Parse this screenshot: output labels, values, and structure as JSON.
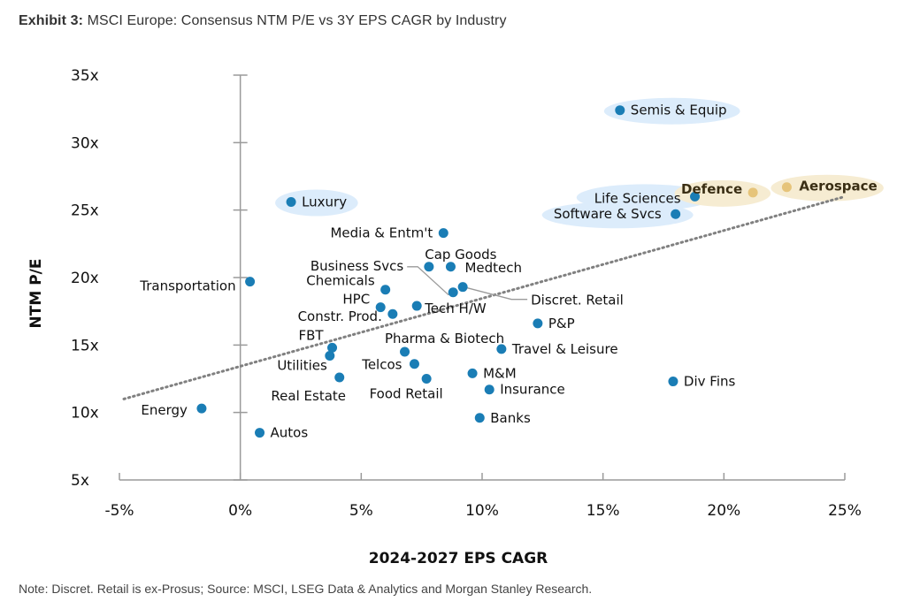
{
  "header": {
    "exhibit": "Exhibit 3:",
    "title": "MSCI Europe: Consensus NTM P/E vs 3Y EPS CAGR by Industry"
  },
  "footer": {
    "note": "Note: Discret. Retail is ex-Prosus; Source: MSCI, LSEG Data & Analytics and Morgan Stanley Research."
  },
  "colors": {
    "point": "#1a7db5",
    "highlight_point": "#e6c47a",
    "blue_halo": "#dcecfb",
    "gold_halo": "#f6ecd2",
    "axis": "#9a9a9a",
    "trendline": "#808080"
  },
  "chart_data": {
    "type": "scatter",
    "title": "MSCI Europe: Consensus NTM P/E vs 3Y EPS CAGR by Industry",
    "xlabel": "2024-2027 EPS CAGR",
    "ylabel": "NTM P/E",
    "xlim": [
      -5,
      25
    ],
    "ylim": [
      5,
      35
    ],
    "x_ticks": [
      -5,
      0,
      5,
      10,
      15,
      20,
      25
    ],
    "x_tick_labels": [
      "-5%",
      "0%",
      "5%",
      "10%",
      "15%",
      "20%",
      "25%"
    ],
    "y_ticks": [
      5,
      10,
      15,
      20,
      25,
      30,
      35
    ],
    "y_tick_labels": [
      "5x",
      "10x",
      "15x",
      "20x",
      "25x",
      "30x",
      "35x"
    ],
    "grid": false,
    "legend": "none",
    "trendline": {
      "style": "dotted",
      "x": [
        -5,
        25
      ],
      "y": [
        11.0,
        26.0
      ]
    },
    "points": [
      {
        "label": "Energy",
        "x": -1.6,
        "y": 10.3,
        "style": "normal",
        "label_pos": "left"
      },
      {
        "label": "Autos",
        "x": 0.8,
        "y": 8.5,
        "style": "normal",
        "label_pos": "right"
      },
      {
        "label": "Transportation",
        "x": 0.4,
        "y": 19.7,
        "style": "normal",
        "label_pos": "left"
      },
      {
        "label": "Luxury",
        "x": 2.1,
        "y": 25.6,
        "style": "blue_halo",
        "label_pos": "right"
      },
      {
        "label": "FBT",
        "x": 3.8,
        "y": 14.8,
        "style": "normal",
        "label_pos": "upleft"
      },
      {
        "label": "Utilities",
        "x": 3.7,
        "y": 14.2,
        "style": "normal",
        "label_pos": "downleft"
      },
      {
        "label": "Real Estate",
        "x": 4.1,
        "y": 12.6,
        "style": "normal",
        "label_pos": "below"
      },
      {
        "label": "Chemicals",
        "x": 6.0,
        "y": 19.1,
        "style": "normal",
        "label_pos": "upleft"
      },
      {
        "label": "HPC",
        "x": 5.8,
        "y": 17.8,
        "style": "normal",
        "label_pos": "upleft"
      },
      {
        "label": "Constr. Prod.",
        "x": 6.3,
        "y": 17.3,
        "style": "normal",
        "label_pos": "left"
      },
      {
        "label": "Tech H/W",
        "x": 7.3,
        "y": 17.9,
        "style": "normal",
        "label_pos": "right"
      },
      {
        "label": "Pharma & Biotech",
        "x": 6.8,
        "y": 14.5,
        "style": "normal",
        "label_pos": "above"
      },
      {
        "label": "Telcos",
        "x": 7.2,
        "y": 13.6,
        "style": "normal",
        "label_pos": "left"
      },
      {
        "label": "Food Retail",
        "x": 7.7,
        "y": 12.5,
        "style": "normal",
        "label_pos": "below"
      },
      {
        "label": "Media & Entm't",
        "x": 8.4,
        "y": 23.3,
        "style": "normal",
        "label_pos": "left"
      },
      {
        "label": "Business Svcs",
        "x": 8.8,
        "y": 18.9,
        "style": "normal",
        "label_pos": "leader-left"
      },
      {
        "label": "Cap Goods",
        "x": 7.8,
        "y": 20.8,
        "style": "normal",
        "label_pos": "above"
      },
      {
        "label": "Medtech",
        "x": 8.7,
        "y": 20.8,
        "style": "normal",
        "label_pos": "right"
      },
      {
        "label": "Discret. Retail",
        "x": 9.2,
        "y": 19.3,
        "style": "normal",
        "label_pos": "leader-right"
      },
      {
        "label": "M&M",
        "x": 9.6,
        "y": 12.9,
        "style": "normal",
        "label_pos": "right"
      },
      {
        "label": "Insurance",
        "x": 10.3,
        "y": 11.7,
        "style": "normal",
        "label_pos": "right"
      },
      {
        "label": "Banks",
        "x": 9.9,
        "y": 9.6,
        "style": "normal",
        "label_pos": "right"
      },
      {
        "label": "Travel & Leisure",
        "x": 10.8,
        "y": 14.7,
        "style": "normal",
        "label_pos": "right"
      },
      {
        "label": "P&P",
        "x": 12.3,
        "y": 16.6,
        "style": "normal",
        "label_pos": "right"
      },
      {
        "label": "Semis & Equip",
        "x": 15.7,
        "y": 32.4,
        "style": "blue_halo",
        "label_pos": "right"
      },
      {
        "label": "Software & Svcs",
        "x": 18.0,
        "y": 24.7,
        "style": "blue_halo",
        "label_pos": "left"
      },
      {
        "label": "Life Sciences",
        "x": 18.8,
        "y": 26.0,
        "style": "blue_halo",
        "label_pos": "left"
      },
      {
        "label": "Defence",
        "x": 21.2,
        "y": 26.3,
        "style": "gold_halo",
        "label_pos": "left"
      },
      {
        "label": "Aerospace",
        "x": 22.6,
        "y": 26.7,
        "style": "gold_halo",
        "label_pos": "right"
      },
      {
        "label": "Div Fins",
        "x": 17.9,
        "y": 12.3,
        "style": "normal",
        "label_pos": "right"
      }
    ]
  }
}
